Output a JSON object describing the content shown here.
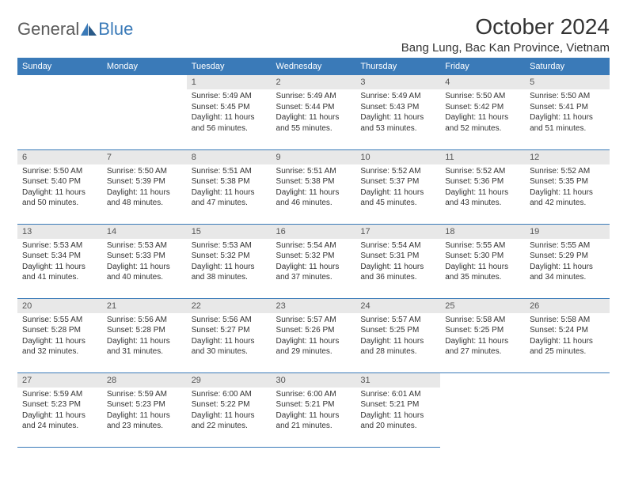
{
  "logo": {
    "general": "General",
    "blue": "Blue"
  },
  "title": "October 2024",
  "location": "Bang Lung, Bac Kan Province, Vietnam",
  "colors": {
    "header_bg": "#3a7ab8",
    "header_fg": "#ffffff",
    "daynum_bg": "#e8e8e8",
    "border": "#3a7ab8",
    "text": "#333333",
    "logo_gray": "#5a5a5a",
    "logo_blue": "#3a7ab8"
  },
  "weekdays": [
    "Sunday",
    "Monday",
    "Tuesday",
    "Wednesday",
    "Thursday",
    "Friday",
    "Saturday"
  ],
  "weeks": [
    [
      {
        "d": "",
        "sr": "",
        "ss": "",
        "dl": ""
      },
      {
        "d": "",
        "sr": "",
        "ss": "",
        "dl": ""
      },
      {
        "d": "1",
        "sr": "Sunrise: 5:49 AM",
        "ss": "Sunset: 5:45 PM",
        "dl": "Daylight: 11 hours and 56 minutes."
      },
      {
        "d": "2",
        "sr": "Sunrise: 5:49 AM",
        "ss": "Sunset: 5:44 PM",
        "dl": "Daylight: 11 hours and 55 minutes."
      },
      {
        "d": "3",
        "sr": "Sunrise: 5:49 AM",
        "ss": "Sunset: 5:43 PM",
        "dl": "Daylight: 11 hours and 53 minutes."
      },
      {
        "d": "4",
        "sr": "Sunrise: 5:50 AM",
        "ss": "Sunset: 5:42 PM",
        "dl": "Daylight: 11 hours and 52 minutes."
      },
      {
        "d": "5",
        "sr": "Sunrise: 5:50 AM",
        "ss": "Sunset: 5:41 PM",
        "dl": "Daylight: 11 hours and 51 minutes."
      }
    ],
    [
      {
        "d": "6",
        "sr": "Sunrise: 5:50 AM",
        "ss": "Sunset: 5:40 PM",
        "dl": "Daylight: 11 hours and 50 minutes."
      },
      {
        "d": "7",
        "sr": "Sunrise: 5:50 AM",
        "ss": "Sunset: 5:39 PM",
        "dl": "Daylight: 11 hours and 48 minutes."
      },
      {
        "d": "8",
        "sr": "Sunrise: 5:51 AM",
        "ss": "Sunset: 5:38 PM",
        "dl": "Daylight: 11 hours and 47 minutes."
      },
      {
        "d": "9",
        "sr": "Sunrise: 5:51 AM",
        "ss": "Sunset: 5:38 PM",
        "dl": "Daylight: 11 hours and 46 minutes."
      },
      {
        "d": "10",
        "sr": "Sunrise: 5:52 AM",
        "ss": "Sunset: 5:37 PM",
        "dl": "Daylight: 11 hours and 45 minutes."
      },
      {
        "d": "11",
        "sr": "Sunrise: 5:52 AM",
        "ss": "Sunset: 5:36 PM",
        "dl": "Daylight: 11 hours and 43 minutes."
      },
      {
        "d": "12",
        "sr": "Sunrise: 5:52 AM",
        "ss": "Sunset: 5:35 PM",
        "dl": "Daylight: 11 hours and 42 minutes."
      }
    ],
    [
      {
        "d": "13",
        "sr": "Sunrise: 5:53 AM",
        "ss": "Sunset: 5:34 PM",
        "dl": "Daylight: 11 hours and 41 minutes."
      },
      {
        "d": "14",
        "sr": "Sunrise: 5:53 AM",
        "ss": "Sunset: 5:33 PM",
        "dl": "Daylight: 11 hours and 40 minutes."
      },
      {
        "d": "15",
        "sr": "Sunrise: 5:53 AM",
        "ss": "Sunset: 5:32 PM",
        "dl": "Daylight: 11 hours and 38 minutes."
      },
      {
        "d": "16",
        "sr": "Sunrise: 5:54 AM",
        "ss": "Sunset: 5:32 PM",
        "dl": "Daylight: 11 hours and 37 minutes."
      },
      {
        "d": "17",
        "sr": "Sunrise: 5:54 AM",
        "ss": "Sunset: 5:31 PM",
        "dl": "Daylight: 11 hours and 36 minutes."
      },
      {
        "d": "18",
        "sr": "Sunrise: 5:55 AM",
        "ss": "Sunset: 5:30 PM",
        "dl": "Daylight: 11 hours and 35 minutes."
      },
      {
        "d": "19",
        "sr": "Sunrise: 5:55 AM",
        "ss": "Sunset: 5:29 PM",
        "dl": "Daylight: 11 hours and 34 minutes."
      }
    ],
    [
      {
        "d": "20",
        "sr": "Sunrise: 5:55 AM",
        "ss": "Sunset: 5:28 PM",
        "dl": "Daylight: 11 hours and 32 minutes."
      },
      {
        "d": "21",
        "sr": "Sunrise: 5:56 AM",
        "ss": "Sunset: 5:28 PM",
        "dl": "Daylight: 11 hours and 31 minutes."
      },
      {
        "d": "22",
        "sr": "Sunrise: 5:56 AM",
        "ss": "Sunset: 5:27 PM",
        "dl": "Daylight: 11 hours and 30 minutes."
      },
      {
        "d": "23",
        "sr": "Sunrise: 5:57 AM",
        "ss": "Sunset: 5:26 PM",
        "dl": "Daylight: 11 hours and 29 minutes."
      },
      {
        "d": "24",
        "sr": "Sunrise: 5:57 AM",
        "ss": "Sunset: 5:25 PM",
        "dl": "Daylight: 11 hours and 28 minutes."
      },
      {
        "d": "25",
        "sr": "Sunrise: 5:58 AM",
        "ss": "Sunset: 5:25 PM",
        "dl": "Daylight: 11 hours and 27 minutes."
      },
      {
        "d": "26",
        "sr": "Sunrise: 5:58 AM",
        "ss": "Sunset: 5:24 PM",
        "dl": "Daylight: 11 hours and 25 minutes."
      }
    ],
    [
      {
        "d": "27",
        "sr": "Sunrise: 5:59 AM",
        "ss": "Sunset: 5:23 PM",
        "dl": "Daylight: 11 hours and 24 minutes."
      },
      {
        "d": "28",
        "sr": "Sunrise: 5:59 AM",
        "ss": "Sunset: 5:23 PM",
        "dl": "Daylight: 11 hours and 23 minutes."
      },
      {
        "d": "29",
        "sr": "Sunrise: 6:00 AM",
        "ss": "Sunset: 5:22 PM",
        "dl": "Daylight: 11 hours and 22 minutes."
      },
      {
        "d": "30",
        "sr": "Sunrise: 6:00 AM",
        "ss": "Sunset: 5:21 PM",
        "dl": "Daylight: 11 hours and 21 minutes."
      },
      {
        "d": "31",
        "sr": "Sunrise: 6:01 AM",
        "ss": "Sunset: 5:21 PM",
        "dl": "Daylight: 11 hours and 20 minutes."
      },
      {
        "d": "",
        "sr": "",
        "ss": "",
        "dl": ""
      },
      {
        "d": "",
        "sr": "",
        "ss": "",
        "dl": ""
      }
    ]
  ]
}
